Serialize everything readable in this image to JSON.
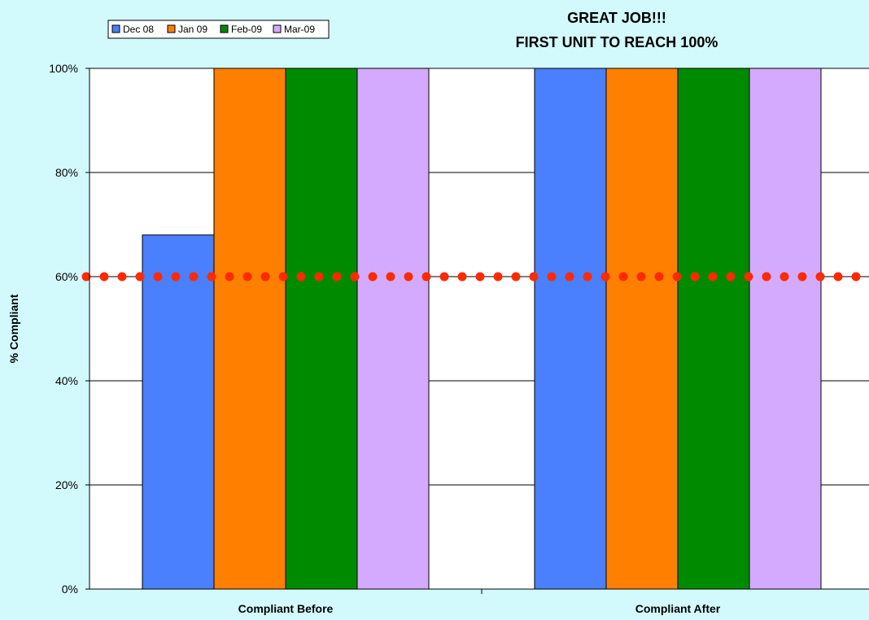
{
  "chart_data": {
    "type": "bar",
    "title_lines": [
      "GREAT JOB!!!",
      "FIRST UNIT TO REACH 100%"
    ],
    "xlabel": "",
    "ylabel": "% Compliant",
    "categories": [
      "Compliant Before",
      "Compliant After"
    ],
    "series": [
      {
        "name": "Dec 08",
        "values": [
          68,
          100
        ]
      },
      {
        "name": "Jan 09",
        "values": [
          100,
          100
        ]
      },
      {
        "name": "Feb-09",
        "values": [
          100,
          100
        ]
      },
      {
        "name": "Mar-09",
        "values": [
          100,
          100
        ]
      }
    ],
    "target_line": {
      "value": 60
    },
    "ylim": [
      0,
      100
    ],
    "yticks": [
      0,
      20,
      40,
      60,
      80,
      100
    ],
    "ytick_labels": [
      "0%",
      "20%",
      "40%",
      "60%",
      "80%",
      "100%"
    ],
    "grid": true,
    "legend_position": "top-left"
  },
  "colors": {
    "series": [
      "#4a7ffd",
      "#ff7f00",
      "#008a00",
      "#d4aaff"
    ],
    "target_line": "#ff2a00",
    "plot_bg": "#ffffff",
    "chart_bg": "#d2fafd"
  }
}
